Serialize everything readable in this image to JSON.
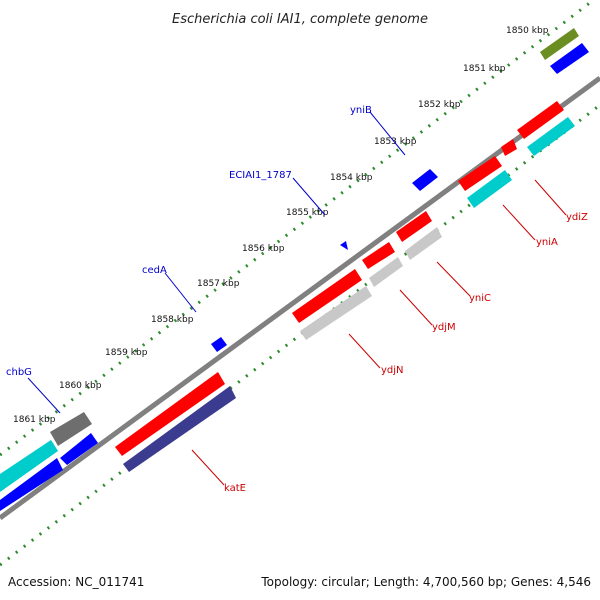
{
  "title": "Escherichia coli IAI1, complete genome",
  "footer": {
    "accession": "Accession: NC_011741",
    "summary": "Topology: circular; Length: 4,700,560 bp; Genes: 4,546"
  },
  "scale": {
    "tick_labels": [
      "1850 kbp",
      "1851 kbp",
      "1852 kbp",
      "1853 kbp",
      "1854 kbp",
      "1855 kbp",
      "1856 kbp",
      "1857 kbp",
      "1858 kbp",
      "1859 kbp",
      "1860 kbp",
      "1861 kbp"
    ]
  },
  "gene_labels": {
    "forward": [
      "yniB",
      "ECIAI1_1787",
      "cedA",
      "chbG"
    ],
    "reverse": [
      "ydiZ",
      "yniA",
      "yniC",
      "ydjM",
      "ydjN",
      "katE"
    ]
  },
  "colors": {
    "forward_label": "#0000cc",
    "reverse_label": "#cc0000",
    "cds": "#ff0000",
    "cds_blue": "#0000ff",
    "cyan": "#00cccc",
    "olive": "#6b8e23",
    "navy": "#3b3b8f",
    "gray": "#c8c8c8",
    "dark_gray": "#6e6e6e",
    "tick": "#1a7a1a",
    "backbone": "#808080"
  }
}
